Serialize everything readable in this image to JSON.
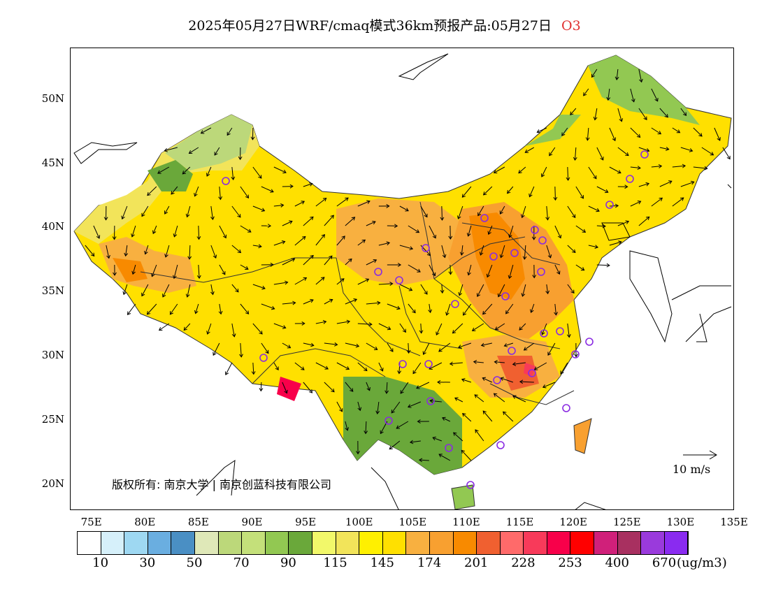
{
  "title": {
    "main": "2025年05月27日WRF/cmaq模式36km预报产品:05月27日",
    "species": "O3"
  },
  "map": {
    "lon_range": [
      73,
      135
    ],
    "lat_range": [
      18,
      54
    ],
    "lat_ticks": [
      {
        "value": 50,
        "label": "50N"
      },
      {
        "value": 45,
        "label": "45N"
      },
      {
        "value": 40,
        "label": "40N"
      },
      {
        "value": 35,
        "label": "35N"
      },
      {
        "value": 30,
        "label": "30N"
      },
      {
        "value": 25,
        "label": "25N"
      },
      {
        "value": 20,
        "label": "20N"
      }
    ],
    "lon_ticks": [
      {
        "value": 75,
        "label": "75E"
      },
      {
        "value": 80,
        "label": "80E"
      },
      {
        "value": 85,
        "label": "85E"
      },
      {
        "value": 90,
        "label": "90E"
      },
      {
        "value": 95,
        "label": "95E"
      },
      {
        "value": 100,
        "label": "100E"
      },
      {
        "value": 105,
        "label": "105E"
      },
      {
        "value": 110,
        "label": "110E"
      },
      {
        "value": 115,
        "label": "115E"
      },
      {
        "value": 120,
        "label": "120E"
      },
      {
        "value": 125,
        "label": "125E"
      },
      {
        "value": 130,
        "label": "130E"
      },
      {
        "value": 135,
        "label": "135E"
      }
    ],
    "copyright": "版权所有: 南京大学 | 南京创蓝科技有限公司",
    "wind_reference_label": "10 m/s",
    "city_marker_color": "#8a2be2"
  },
  "colorbar": {
    "colors": [
      "#ffffff",
      "#d6f0fa",
      "#9ed8f2",
      "#6aaee0",
      "#4a8fc4",
      "#dfe8b8",
      "#bcd87a",
      "#c4e07a",
      "#92c852",
      "#6aa83a",
      "#f2f86a",
      "#f2e45a",
      "#fff000",
      "#ffe000",
      "#f8b040",
      "#f8a030",
      "#f88a00",
      "#f06030",
      "#ff6a6a",
      "#f83a5a",
      "#f8004a",
      "#ff0000",
      "#d0207a",
      "#a83060",
      "#9a3adc",
      "#8a2bf0"
    ],
    "labels": [
      "10",
      "30",
      "50",
      "70",
      "90",
      "115",
      "145",
      "174",
      "201",
      "228",
      "253",
      "400",
      "670"
    ],
    "unit": "(ug/m3)"
  }
}
